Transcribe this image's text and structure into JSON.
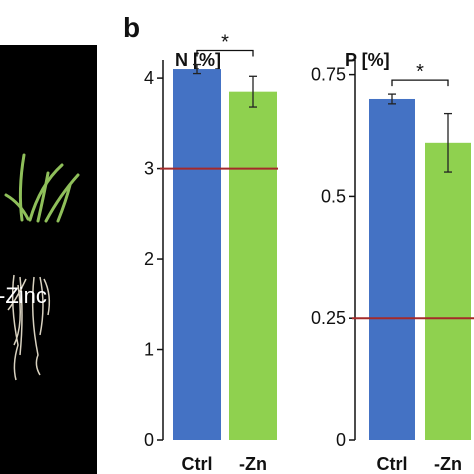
{
  "panel_label": "b",
  "photo": {
    "label": "-Zinc"
  },
  "chart_data": [
    {
      "type": "bar",
      "title": "N [%]",
      "categories": [
        "Ctrl",
        "-Zn"
      ],
      "values": [
        4.1,
        3.85
      ],
      "errors": [
        0.05,
        0.17
      ],
      "colors": [
        "#4472c4",
        "#8fd14f"
      ],
      "ylim": [
        0,
        4.2
      ],
      "yticks": [
        0,
        1,
        2,
        3,
        4
      ],
      "ytick_labels": [
        "0",
        "1",
        "2",
        "3",
        "4"
      ],
      "reference_line": {
        "value": 3,
        "color": "#a52a2a"
      },
      "significance": "*"
    },
    {
      "type": "bar",
      "title": "P [%]",
      "categories": [
        "Ctrl",
        "-Zn"
      ],
      "values": [
        0.7,
        0.61
      ],
      "errors": [
        0.01,
        0.06
      ],
      "colors": [
        "#4472c4",
        "#8fd14f"
      ],
      "ylim": [
        0,
        0.78
      ],
      "yticks": [
        0,
        0.25,
        0.5,
        0.75
      ],
      "ytick_labels": [
        "0",
        "0.25",
        "0.5",
        "0.75"
      ],
      "reference_line": {
        "value": 0.25,
        "color": "#a52a2a"
      },
      "significance": "*"
    }
  ]
}
